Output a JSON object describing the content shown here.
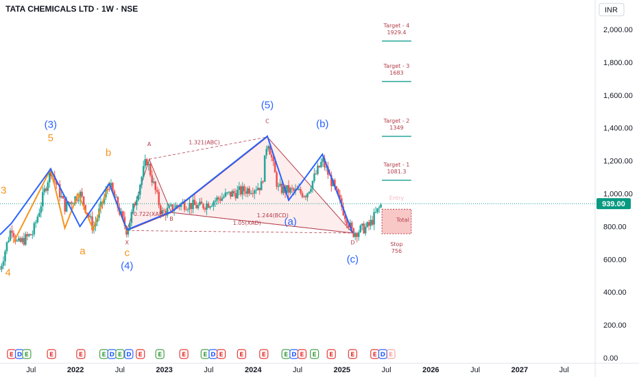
{
  "header": {
    "title": "TATA CHEMICALS LTD · 1W · NSE",
    "currency": "INR"
  },
  "colors": {
    "up": "#26a69a",
    "down": "#ef5350",
    "wave_blue": "#2962ff",
    "wave_orange": "#f7931a",
    "harmonic": "#b23a48",
    "price_line": "#089981",
    "target_line": "#26a69a",
    "event_earnings": "#e53935",
    "event_dividend": "#2962ff",
    "event_split": "#43a047"
  },
  "chart_data": {
    "type": "candlestick",
    "ylim": [
      0,
      2100
    ],
    "yticks": [
      "0.00",
      "200.00",
      "400.00",
      "600.00",
      "800.00",
      "1,000.00",
      "1,200.00",
      "1,400.00",
      "1,600.00",
      "1,800.00",
      "2,000.00"
    ],
    "ytick_values": [
      0,
      200,
      400,
      600,
      800,
      1000,
      1200,
      1400,
      1600,
      1800,
      2000
    ],
    "xticks": [
      {
        "label": "Jul",
        "t": 2021.5,
        "year": false
      },
      {
        "label": "2022",
        "t": 2022.0,
        "year": true
      },
      {
        "label": "Jul",
        "t": 2022.5,
        "year": false
      },
      {
        "label": "2023",
        "t": 2023.0,
        "year": true
      },
      {
        "label": "Jul",
        "t": 2023.5,
        "year": false
      },
      {
        "label": "2024",
        "t": 2024.0,
        "year": true
      },
      {
        "label": "Jul",
        "t": 2024.5,
        "year": false
      },
      {
        "label": "2025",
        "t": 2025.0,
        "year": true
      },
      {
        "label": "Jul",
        "t": 2025.5,
        "year": false
      },
      {
        "label": "2026",
        "t": 2026.0,
        "year": true
      },
      {
        "label": "Jul",
        "t": 2026.5,
        "year": false
      },
      {
        "label": "2027",
        "t": 2027.0,
        "year": true
      },
      {
        "label": "Jul",
        "t": 2027.5,
        "year": false
      }
    ],
    "xlim": [
      2021.15,
      2027.85
    ],
    "price_anchors": [
      [
        2021.15,
        540
      ],
      [
        2021.28,
        800
      ],
      [
        2021.35,
        690
      ],
      [
        2021.52,
        760
      ],
      [
        2021.72,
        1150
      ],
      [
        2021.88,
        920
      ],
      [
        2022.05,
        1000
      ],
      [
        2022.2,
        790
      ],
      [
        2022.38,
        1060
      ],
      [
        2022.58,
        770
      ],
      [
        2022.8,
        1210
      ],
      [
        2022.97,
        880
      ],
      [
        2023.2,
        940
      ],
      [
        2023.4,
        920
      ],
      [
        2023.7,
        990
      ],
      [
        2024.1,
        1050
      ],
      [
        2024.16,
        1340
      ],
      [
        2024.28,
        1030
      ],
      [
        2024.6,
        1000
      ],
      [
        2024.78,
        1200
      ],
      [
        2024.9,
        1050
      ],
      [
        2025.05,
        850
      ],
      [
        2025.12,
        760
      ],
      [
        2025.3,
        800
      ],
      [
        2025.45,
        940
      ]
    ],
    "last_price": 939.0,
    "last_price_label": "939.00",
    "blue_wave": [
      [
        2021.15,
        750
      ],
      [
        2021.28,
        820
      ],
      [
        2021.72,
        1150
      ],
      [
        2022.05,
        800
      ],
      [
        2022.38,
        1060
      ],
      [
        2022.58,
        780
      ],
      [
        2023.08,
        890
      ],
      [
        2024.16,
        1350
      ],
      [
        2024.4,
        960
      ],
      [
        2024.78,
        1240
      ],
      [
        2025.12,
        760
      ]
    ],
    "orange_wave": [
      [
        2021.3,
        700
      ],
      [
        2021.72,
        1150
      ],
      [
        2021.88,
        790
      ],
      [
        2022.03,
        1000
      ],
      [
        2022.2,
        780
      ],
      [
        2022.38,
        1065
      ],
      [
        2022.58,
        770
      ]
    ],
    "wave_labels": [
      {
        "text": "3",
        "t": 2021.19,
        "p": 1000,
        "color": "orange"
      },
      {
        "text": "4",
        "t": 2021.24,
        "p": 500,
        "color": "orange"
      },
      {
        "text": "(3)",
        "t": 2021.72,
        "p": 1400,
        "color": "blue"
      },
      {
        "text": "5",
        "t": 2021.72,
        "p": 1320,
        "color": "orange"
      },
      {
        "text": "a",
        "t": 2022.08,
        "p": 630,
        "color": "orange"
      },
      {
        "text": "b",
        "t": 2022.37,
        "p": 1230,
        "color": "orange"
      },
      {
        "text": "c",
        "t": 2022.58,
        "p": 620,
        "color": "orange"
      },
      {
        "text": "(4)",
        "t": 2022.58,
        "p": 540,
        "color": "blue"
      },
      {
        "text": "(5)",
        "t": 2024.16,
        "p": 1520,
        "color": "blue"
      },
      {
        "text": "(b)",
        "t": 2024.78,
        "p": 1405,
        "color": "blue"
      },
      {
        "text": "(a)",
        "t": 2024.42,
        "p": 810,
        "color": "blue"
      },
      {
        "text": "(c)",
        "t": 2025.12,
        "p": 580,
        "color": "blue"
      }
    ],
    "harmonic": {
      "points": {
        "X": [
          2022.58,
          775
        ],
        "A": [
          2022.83,
          1210
        ],
        "B": [
          2023.08,
          885
        ],
        "C": [
          2024.16,
          1345
        ],
        "D": [
          2025.12,
          760
        ]
      },
      "labels": [
        {
          "text": "X",
          "t": 2022.58,
          "p": 690
        },
        {
          "text": "A",
          "t": 2022.83,
          "p": 1290
        },
        {
          "text": "B",
          "t": 2023.08,
          "p": 835
        },
        {
          "text": "C",
          "t": 2024.16,
          "p": 1430
        },
        {
          "text": "D",
          "t": 2025.12,
          "p": 690
        }
      ],
      "ratios": [
        {
          "text": "1.321(ABC)",
          "t": 2023.45,
          "p": 1300
        },
        {
          "text": "0.722(XAB)",
          "t": 2022.83,
          "p": 865
        },
        {
          "text": "1.244(BCD)",
          "t": 2024.22,
          "p": 855
        },
        {
          "text": "1.05(XAD)",
          "t": 2023.93,
          "p": 810
        }
      ]
    },
    "targets": [
      {
        "name": "Target - 4",
        "value": "1929.4",
        "price": 1929.4
      },
      {
        "name": "Target - 3",
        "value": "1683",
        "price": 1683
      },
      {
        "name": "Target - 2",
        "value": "1349",
        "price": 1349
      },
      {
        "name": "Target - 1",
        "value": "1081.3",
        "price": 1081.3
      }
    ],
    "stop": {
      "name": "Stop",
      "value": "756",
      "price": 756
    },
    "entry_label": "Entry",
    "total_label": "Total",
    "risk_box": {
      "t0": 2025.45,
      "t1": 2025.78,
      "p0": 756,
      "p1": 905
    },
    "target_line_span": [
      2025.45,
      2025.78
    ]
  },
  "events": [
    {
      "t": 2021.28,
      "kind": "E"
    },
    {
      "t": 2021.37,
      "kind": "D"
    },
    {
      "t": 2021.45,
      "kind": "E",
      "alt": "split"
    },
    {
      "t": 2021.73,
      "kind": "E"
    },
    {
      "t": 2022.06,
      "kind": "E"
    },
    {
      "t": 2022.32,
      "kind": "E",
      "alt": "split"
    },
    {
      "t": 2022.41,
      "kind": "D"
    },
    {
      "t": 2022.5,
      "kind": "E",
      "alt": "split"
    },
    {
      "t": 2022.6,
      "kind": "D"
    },
    {
      "t": 2022.73,
      "kind": "E"
    },
    {
      "t": 2022.95,
      "kind": "E",
      "alt": "split"
    },
    {
      "t": 2023.22,
      "kind": "E"
    },
    {
      "t": 2023.46,
      "kind": "E",
      "alt": "split"
    },
    {
      "t": 2023.55,
      "kind": "D"
    },
    {
      "t": 2023.64,
      "kind": "E"
    },
    {
      "t": 2023.87,
      "kind": "E"
    },
    {
      "t": 2024.12,
      "kind": "E"
    },
    {
      "t": 2024.37,
      "kind": "E",
      "alt": "split"
    },
    {
      "t": 2024.46,
      "kind": "D"
    },
    {
      "t": 2024.55,
      "kind": "E"
    },
    {
      "t": 2024.69,
      "kind": "E",
      "alt": "split"
    },
    {
      "t": 2024.88,
      "kind": "E"
    },
    {
      "t": 2025.12,
      "kind": "E"
    },
    {
      "t": 2025.37,
      "kind": "E"
    },
    {
      "t": 2025.46,
      "kind": "D"
    },
    {
      "t": 2025.55,
      "kind": "E",
      "alt": "ghost"
    }
  ]
}
